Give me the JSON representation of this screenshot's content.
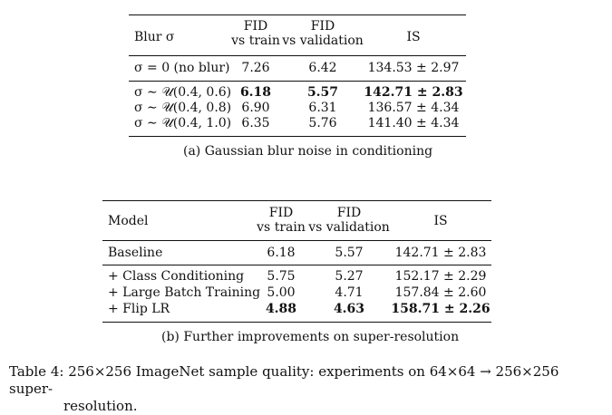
{
  "table_a": {
    "headers": {
      "col0": "Blur σ",
      "col1_line1": "FID",
      "col1_line2": "vs train",
      "col2_line1": "FID",
      "col2_line2": "vs validation",
      "col3": "IS"
    },
    "rows": [
      {
        "label": "σ = 0 (no blur)",
        "fid_train": "7.26",
        "fid_val": "6.42",
        "is": "134.53 ± 2.97"
      },
      {
        "label": "σ ∼ 𝒰(0.4, 0.6)",
        "fid_train": "6.18",
        "fid_val": "5.57",
        "is": "142.71 ± 2.83"
      },
      {
        "label": "σ ∼ 𝒰(0.4, 0.8)",
        "fid_train": "6.90",
        "fid_val": "6.31",
        "is": "136.57 ± 4.34"
      },
      {
        "label": "σ ∼ 𝒰(0.4, 1.0)",
        "fid_train": "6.35",
        "fid_val": "5.76",
        "is": "141.40 ± 4.34"
      }
    ],
    "caption": "(a) Gaussian blur noise in conditioning"
  },
  "table_b": {
    "headers": {
      "col0": "Model",
      "col1_line1": "FID",
      "col1_line2": "vs train",
      "col2_line1": "FID",
      "col2_line2": "vs validation",
      "col3": "IS"
    },
    "rows": [
      {
        "label": "Baseline",
        "fid_train": "6.18",
        "fid_val": "5.57",
        "is": "142.71 ± 2.83"
      },
      {
        "label": "+ Class Conditioning",
        "fid_train": "5.75",
        "fid_val": "5.27",
        "is": "152.17 ± 2.29"
      },
      {
        "label": "+ Large Batch Training",
        "fid_train": "5.00",
        "fid_val": "4.71",
        "is": "157.84 ± 2.60"
      },
      {
        "label": "+ Flip LR",
        "fid_train": "4.88",
        "fid_val": "4.63",
        "is": "158.71 ± 2.26"
      }
    ],
    "caption": "(b) Further improvements on super-resolution"
  },
  "footnote": {
    "line1": "Table 4: 256×256 ImageNet sample quality: experiments on 64×64 → 256×256 super-",
    "line2": "resolution."
  }
}
